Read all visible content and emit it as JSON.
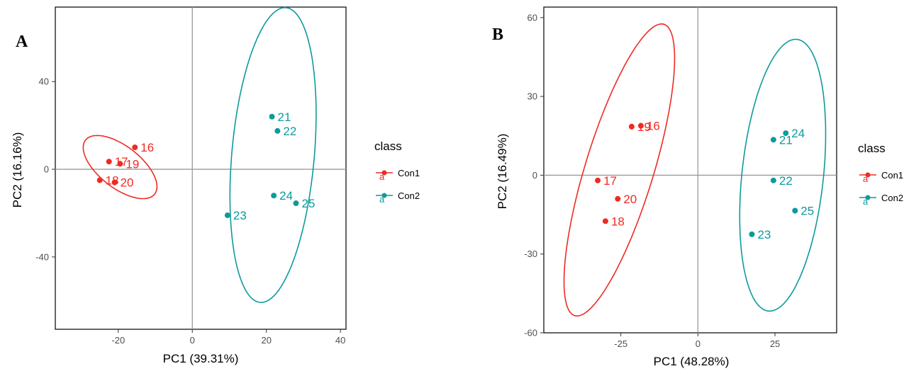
{
  "chart_data": [
    {
      "type": "scatter",
      "panel_label": "A",
      "xlabel": "PC1 (39.31%)",
      "ylabel": "PC2 (16.16%)",
      "xlim": [
        -37,
        41.5
      ],
      "ylim": [
        -73,
        74
      ],
      "xticks": [
        -20,
        0,
        20,
        40
      ],
      "yticks": [
        -40,
        0,
        40
      ],
      "grid": false,
      "zero_lines": true,
      "legend": {
        "title": "class",
        "position": "right",
        "entries": [
          {
            "name": "Con1",
            "key_letter": "a"
          },
          {
            "name": "Con2",
            "key_letter": "a"
          }
        ]
      },
      "series": [
        {
          "name": "Con1",
          "color": "#ee2b23",
          "points": [
            {
              "label": "16",
              "x": -15.5,
              "y": 10
            },
            {
              "label": "17",
              "x": -22.5,
              "y": 3.5
            },
            {
              "label": "19",
              "x": -19.5,
              "y": 2.5
            },
            {
              "label": "18",
              "x": -25.0,
              "y": -5
            },
            {
              "label": "20",
              "x": -21.0,
              "y": -6
            }
          ],
          "ellipse": {
            "cx": -19.5,
            "cy": 1,
            "rx": 20,
            "ry": 9.5,
            "angle_deg": 38
          }
        },
        {
          "name": "Con2",
          "color": "#0e9a9c",
          "points": [
            {
              "label": "21",
              "x": 21.5,
              "y": 24
            },
            {
              "label": "22",
              "x": 23.0,
              "y": 17.5
            },
            {
              "label": "24",
              "x": 22.0,
              "y": -12
            },
            {
              "label": "25",
              "x": 28.0,
              "y": -15.5
            },
            {
              "label": "23",
              "x": 9.5,
              "y": -21
            }
          ],
          "ellipse": {
            "cx": 21.8,
            "cy": 6.5,
            "rx": 18.8,
            "ry": 67.5,
            "angle_deg": 5
          }
        }
      ]
    },
    {
      "type": "scatter",
      "panel_label": "B",
      "xlabel": "PC1 (48.28%)",
      "ylabel": "PC2 (16.49%)",
      "xlim": [
        -50,
        45
      ],
      "ylim": [
        -60,
        64
      ],
      "xticks": [
        -25,
        0,
        25
      ],
      "yticks": [
        60,
        30,
        0,
        -30,
        -60
      ],
      "grid": false,
      "zero_lines": true,
      "legend": {
        "title": "class",
        "position": "right",
        "entries": [
          {
            "name": "Con1",
            "key_letter": "a"
          },
          {
            "name": "Con2",
            "key_letter": "a"
          }
        ]
      },
      "series": [
        {
          "name": "Con1",
          "color": "#ee2b23",
          "points": [
            {
              "label": "19",
              "x": -21.5,
              "y": 18.5
            },
            {
              "label": "16",
              "x": -18.5,
              "y": 18.8
            },
            {
              "label": "17",
              "x": -32.5,
              "y": -2
            },
            {
              "label": "20",
              "x": -26.0,
              "y": -9
            },
            {
              "label": "18",
              "x": -30.0,
              "y": -17.5
            }
          ],
          "ellipse": {
            "cx": -25.5,
            "cy": 2,
            "rx": 13,
            "ry": 58,
            "angle_deg": 17
          }
        },
        {
          "name": "Con2",
          "color": "#0e9a9c",
          "points": [
            {
              "label": "24",
              "x": 28.5,
              "y": 16
            },
            {
              "label": "21",
              "x": 24.5,
              "y": 13.5
            },
            {
              "label": "22",
              "x": 24.5,
              "y": -2
            },
            {
              "label": "25",
              "x": 31.5,
              "y": -13.5
            },
            {
              "label": "23",
              "x": 17.5,
              "y": -22.5
            }
          ],
          "ellipse": {
            "cx": 27.5,
            "cy": 0,
            "rx": 15.5,
            "ry": 52,
            "angle_deg": 6
          }
        }
      ]
    }
  ]
}
